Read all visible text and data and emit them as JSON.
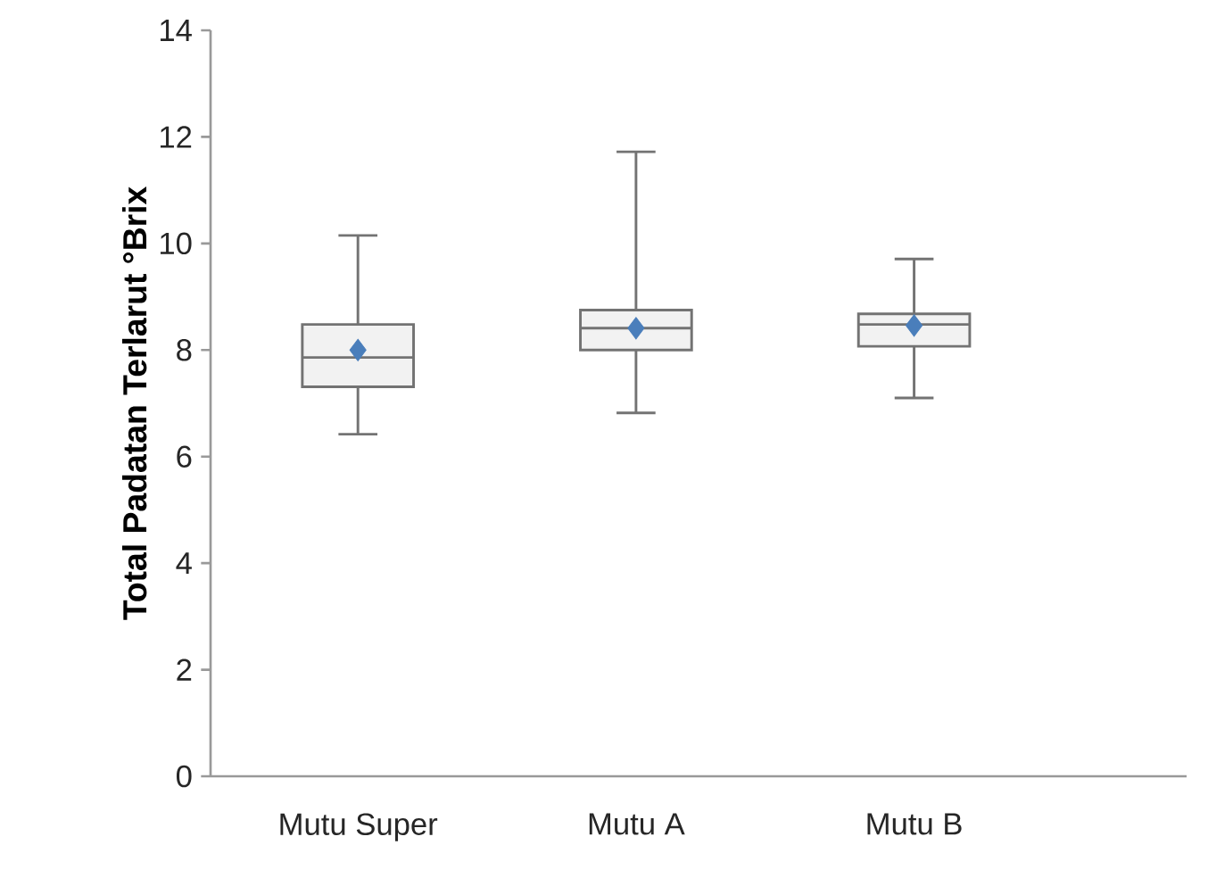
{
  "chart_data": {
    "type": "box",
    "ylabel": "Total Padatan Terlarut °Brix",
    "categories": [
      "Mutu Super",
      "Mutu A",
      "Mutu B"
    ],
    "boxes": [
      {
        "low": 6.42,
        "q1": 7.31,
        "median": 7.86,
        "q3": 8.48,
        "high": 10.15,
        "mean": 8.0
      },
      {
        "low": 6.82,
        "q1": 8.0,
        "median": 8.41,
        "q3": 8.75,
        "high": 11.72,
        "mean": 8.41
      },
      {
        "low": 7.1,
        "q1": 8.07,
        "median": 8.48,
        "q3": 8.68,
        "high": 9.71,
        "mean": 8.46
      }
    ],
    "color": "#f2f2f2",
    "marker": "diamond",
    "ylim": [
      0,
      14
    ],
    "yticks": [
      0,
      2,
      4,
      6,
      8,
      10,
      12,
      14
    ],
    "grid": false
  }
}
